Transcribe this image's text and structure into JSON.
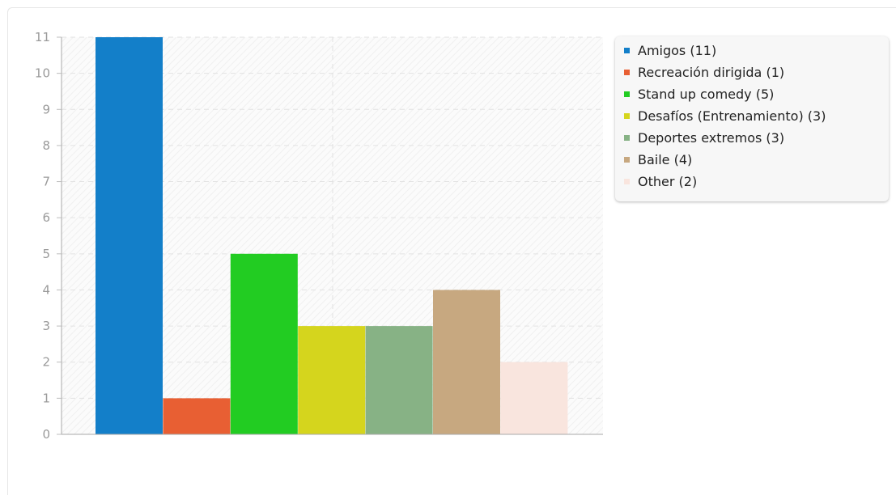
{
  "chart_data": {
    "type": "bar",
    "title": "",
    "xlabel": "",
    "ylabel": "",
    "ylim": [
      0,
      11
    ],
    "yticks": [
      0,
      1,
      2,
      3,
      4,
      5,
      6,
      7,
      8,
      9,
      10,
      11
    ],
    "grid": true,
    "legend_position": "right",
    "categories": [
      "Amigos (11)",
      "Recreación dirigida (1)",
      "Stand up comedy (5)",
      "Desafíos (Entrenamiento) (3)",
      "Deportes extremos (3)",
      "Baile (4)",
      "Other (2)"
    ],
    "values": [
      11,
      1,
      5,
      3,
      3,
      4,
      2
    ],
    "colors": [
      "#137fc9",
      "#e85f33",
      "#22cc22",
      "#d5d51d",
      "#87b285",
      "#c7a880",
      "#f9e5de"
    ]
  }
}
